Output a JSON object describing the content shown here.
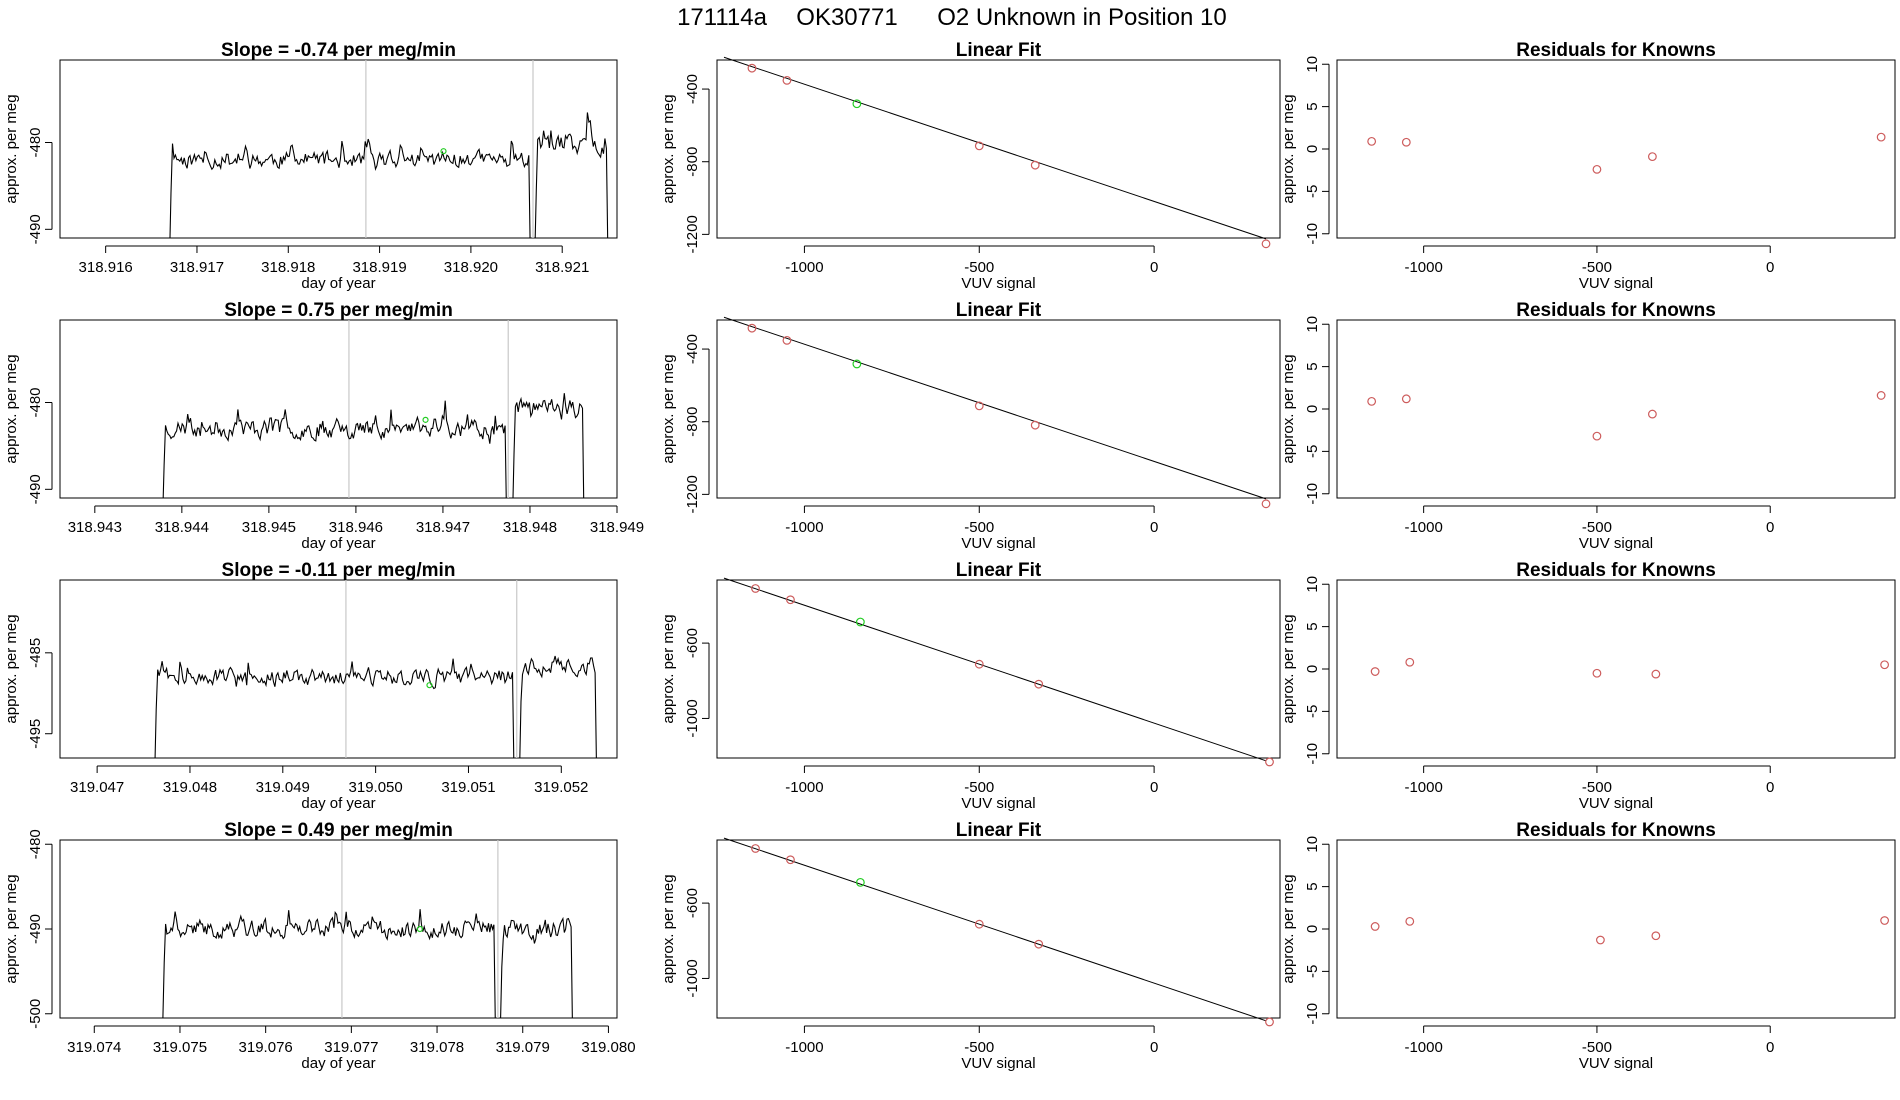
{
  "figure": {
    "title_parts": [
      "171114a",
      "OK30771",
      "O2 Unknown in Position  10"
    ],
    "colors": {
      "known": "#cd5c5c",
      "unknown": "#22cc22",
      "line": "#000000",
      "marker_line": "#c8c8c8"
    }
  },
  "chart_data": [
    {
      "row": 1,
      "timeseries": {
        "type": "line",
        "title": "Slope =  -0.74  per meg/min",
        "xlabel": "day of year",
        "ylabel": "approx. per meg",
        "xlim": [
          318.9155,
          318.9216
        ],
        "ylim": [
          -491,
          -470.5
        ],
        "xticks": [
          318.916,
          318.917,
          318.918,
          318.919,
          318.92,
          318.921
        ],
        "xtick_labels": [
          "318.916",
          "318.917",
          "318.918",
          "318.919",
          "318.920",
          "318.921"
        ],
        "yticks": [
          -480,
          -490
        ],
        "ytick_labels": [
          "-480",
          "-490"
        ],
        "x_start": 318.9167,
        "x_end": 318.9215,
        "vlines": [
          318.91885,
          318.92068
        ],
        "unknown_point": {
          "x": 318.9197,
          "y": -481
        },
        "segments": [
          {
            "x_from": 318.9167,
            "x_to": 318.92065,
            "base": -482,
            "amp": 1.5,
            "seed": 11,
            "edge_low": -493
          },
          {
            "x_from": 318.9207,
            "x_to": 318.9215,
            "base": -480,
            "amp": 2.2,
            "seed": 17,
            "edge_low": -493
          }
        ]
      },
      "fit": {
        "type": "scatter",
        "title": "Linear Fit",
        "xlabel": "VUV signal",
        "ylabel": "approx. per meg",
        "xlim": [
          -1250,
          360
        ],
        "ylim": [
          -1220,
          -240
        ],
        "xticks": [
          -1000,
          -500,
          0
        ],
        "xtick_labels": [
          "-1000",
          "-500",
          "0"
        ],
        "yticks": [
          -400,
          -800,
          -1200
        ],
        "ytick_labels": [
          "-400",
          "-800",
          "-1200"
        ],
        "line": [
          [
            -1230,
            -225
          ],
          [
            320,
            -1225
          ]
        ],
        "known": [
          [
            -1150,
            -285
          ],
          [
            -1050,
            -352
          ],
          [
            -500,
            -713
          ],
          [
            -340,
            -819
          ],
          [
            320,
            -1252
          ]
        ],
        "unknown": [
          [
            -850,
            -481
          ]
        ]
      },
      "residuals": {
        "type": "scatter",
        "title": "Residuals for Knowns",
        "xlabel": "VUV signal",
        "ylabel": "approx. per meg",
        "xlim": [
          -1250,
          360
        ],
        "ylim": [
          -10.5,
          10.5
        ],
        "xticks": [
          -1000,
          -500,
          0
        ],
        "xtick_labels": [
          "-1000",
          "-500",
          "0"
        ],
        "yticks": [
          10,
          5,
          0,
          -5,
          -10
        ],
        "ytick_labels": [
          "10",
          "5",
          "0",
          "-5",
          "-10"
        ],
        "points": [
          [
            -1150,
            0.9
          ],
          [
            -1050,
            0.8
          ],
          [
            -500,
            -2.4
          ],
          [
            -340,
            -0.9
          ],
          [
            320,
            1.4
          ]
        ]
      }
    },
    {
      "row": 2,
      "timeseries": {
        "type": "line",
        "title": "Slope =  0.75  per meg/min",
        "xlabel": "day of year",
        "ylabel": "approx. per meg",
        "xlim": [
          318.9426,
          318.949
        ],
        "ylim": [
          -491,
          -470.5
        ],
        "xticks": [
          318.943,
          318.944,
          318.945,
          318.946,
          318.947,
          318.948,
          318.949
        ],
        "xtick_labels": [
          "318.943",
          "318.944",
          "318.945",
          "318.946",
          "318.947",
          "318.948",
          "318.949"
        ],
        "yticks": [
          -480,
          -490
        ],
        "ytick_labels": [
          "-480",
          "-490"
        ],
        "x_start": 318.94378,
        "x_end": 318.94862,
        "vlines": [
          318.94592,
          318.94775
        ],
        "unknown_point": {
          "x": 318.9468,
          "y": -482
        },
        "segments": [
          {
            "x_from": 318.94378,
            "x_to": 318.94773,
            "base": -483,
            "amp": 1.7,
            "seed": 23,
            "edge_low": -493
          },
          {
            "x_from": 318.9478,
            "x_to": 318.94862,
            "base": -481,
            "amp": 2.0,
            "seed": 29,
            "edge_low": -493
          }
        ]
      },
      "fit": {
        "type": "scatter",
        "title": "Linear Fit",
        "xlabel": "VUV signal",
        "ylabel": "approx. per meg",
        "xlim": [
          -1250,
          360
        ],
        "ylim": [
          -1220,
          -240
        ],
        "xticks": [
          -1000,
          -500,
          0
        ],
        "xtick_labels": [
          "-1000",
          "-500",
          "0"
        ],
        "yticks": [
          -400,
          -800,
          -1200
        ],
        "ytick_labels": [
          "-400",
          "-800",
          "-1200"
        ],
        "line": [
          [
            -1230,
            -225
          ],
          [
            320,
            -1225
          ]
        ],
        "known": [
          [
            -1150,
            -285
          ],
          [
            -1050,
            -352
          ],
          [
            -500,
            -713
          ],
          [
            -340,
            -819
          ],
          [
            320,
            -1252
          ]
        ],
        "unknown": [
          [
            -850,
            -482
          ]
        ]
      },
      "residuals": {
        "type": "scatter",
        "title": "Residuals for Knowns",
        "xlabel": "VUV signal",
        "ylabel": "approx. per meg",
        "xlim": [
          -1250,
          360
        ],
        "ylim": [
          -10.5,
          10.5
        ],
        "xticks": [
          -1000,
          -500,
          0
        ],
        "xtick_labels": [
          "-1000",
          "-500",
          "0"
        ],
        "yticks": [
          10,
          5,
          0,
          -5,
          -10
        ],
        "ytick_labels": [
          "10",
          "5",
          "0",
          "-5",
          "-10"
        ],
        "points": [
          [
            -1150,
            0.9
          ],
          [
            -1050,
            1.2
          ],
          [
            -500,
            -3.2
          ],
          [
            -340,
            -0.6
          ],
          [
            320,
            1.6
          ]
        ]
      }
    },
    {
      "row": 3,
      "timeseries": {
        "type": "line",
        "title": "Slope =  -0.11  per meg/min",
        "xlabel": "day of year",
        "ylabel": "approx. per meg",
        "xlim": [
          319.0466,
          319.0526
        ],
        "ylim": [
          -498,
          -476
        ],
        "xticks": [
          319.047,
          319.048,
          319.049,
          319.05,
          319.051,
          319.052
        ],
        "xtick_labels": [
          "319.047",
          "319.048",
          "319.049",
          "319.050",
          "319.051",
          "319.052"
        ],
        "yticks": [
          -485,
          -495
        ],
        "ytick_labels": [
          "-485",
          "-495"
        ],
        "x_start": 319.04762,
        "x_end": 319.05238,
        "vlines": [
          319.04968,
          319.05152
        ],
        "unknown_point": {
          "x": 319.05058,
          "y": -489
        },
        "segments": [
          {
            "x_from": 319.04762,
            "x_to": 319.05149,
            "base": -488,
            "amp": 1.6,
            "seed": 31,
            "edge_low": -500
          },
          {
            "x_from": 319.05155,
            "x_to": 319.05238,
            "base": -486.5,
            "amp": 1.8,
            "seed": 37,
            "edge_low": -500
          }
        ]
      },
      "fit": {
        "type": "scatter",
        "title": "Linear Fit",
        "xlabel": "VUV signal",
        "ylabel": "approx. per meg",
        "xlim": [
          -1250,
          360
        ],
        "ylim": [
          -1210,
          -265
        ],
        "xticks": [
          -1000,
          -500,
          0
        ],
        "xtick_labels": [
          "-1000",
          "-500",
          "0"
        ],
        "yticks": [
          -600,
          -1000
        ],
        "ytick_labels": [
          "-600",
          "-1000"
        ],
        "line": [
          [
            -1230,
            -255
          ],
          [
            320,
            -1225
          ]
        ],
        "known": [
          [
            -1140,
            -310
          ],
          [
            -1040,
            -370
          ],
          [
            -500,
            -712
          ],
          [
            -330,
            -818
          ],
          [
            330,
            -1231
          ]
        ],
        "unknown": [
          [
            -840,
            -488
          ]
        ]
      },
      "residuals": {
        "type": "scatter",
        "title": "Residuals for Knowns",
        "xlabel": "VUV signal",
        "ylabel": "approx. per meg",
        "xlim": [
          -1250,
          360
        ],
        "ylim": [
          -10.5,
          10.5
        ],
        "xticks": [
          -1000,
          -500,
          0
        ],
        "xtick_labels": [
          "-1000",
          "-500",
          "0"
        ],
        "yticks": [
          10,
          5,
          0,
          -5,
          -10
        ],
        "ytick_labels": [
          "10",
          "5",
          "0",
          "-5",
          "-10"
        ],
        "points": [
          [
            -1140,
            -0.3
          ],
          [
            -1040,
            0.8
          ],
          [
            -500,
            -0.5
          ],
          [
            -330,
            -0.6
          ],
          [
            330,
            0.5
          ]
        ]
      }
    },
    {
      "row": 4,
      "timeseries": {
        "type": "line",
        "title": "Slope =  0.49  per meg/min",
        "xlabel": "day of year",
        "ylabel": "approx. per meg",
        "xlim": [
          319.0736,
          319.0801
        ],
        "ylim": [
          -500.5,
          -479.5
        ],
        "xticks": [
          319.074,
          319.075,
          319.076,
          319.077,
          319.078,
          319.079,
          319.08
        ],
        "xtick_labels": [
          "319.074",
          "319.075",
          "319.076",
          "319.077",
          "319.078",
          "319.079",
          "319.080"
        ],
        "yticks": [
          -480,
          -490,
          -500
        ],
        "ytick_labels": [
          "-480",
          "-490",
          "-500"
        ],
        "x_start": 319.0748,
        "x_end": 319.07958,
        "vlines": [
          319.07689,
          319.07871
        ],
        "unknown_point": {
          "x": 319.0778,
          "y": -490
        },
        "segments": [
          {
            "x_from": 319.0748,
            "x_to": 319.07868,
            "base": -490,
            "amp": 1.6,
            "seed": 41,
            "edge_low": -501
          },
          {
            "x_from": 319.07874,
            "x_to": 319.07958,
            "base": -490,
            "amp": 1.8,
            "seed": 43,
            "edge_low": -501
          }
        ]
      },
      "fit": {
        "type": "scatter",
        "title": "Linear Fit",
        "xlabel": "VUV signal",
        "ylabel": "approx. per meg",
        "xlim": [
          -1250,
          360
        ],
        "ylim": [
          -1210,
          -265
        ],
        "xticks": [
          -1000,
          -500,
          0
        ],
        "xtick_labels": [
          "-1000",
          "-500",
          "0"
        ],
        "yticks": [
          -600,
          -1000
        ],
        "ytick_labels": [
          "-600",
          "-1000"
        ],
        "line": [
          [
            -1230,
            -255
          ],
          [
            320,
            -1225
          ]
        ],
        "known": [
          [
            -1140,
            -310
          ],
          [
            -1040,
            -370
          ],
          [
            -500,
            -712
          ],
          [
            -330,
            -818
          ],
          [
            330,
            -1231
          ]
        ],
        "unknown": [
          [
            -840,
            -490
          ]
        ]
      },
      "residuals": {
        "type": "scatter",
        "title": "Residuals for Knowns",
        "xlabel": "VUV signal",
        "ylabel": "approx. per meg",
        "xlim": [
          -1250,
          360
        ],
        "ylim": [
          -10.5,
          10.5
        ],
        "xticks": [
          -1000,
          -500,
          0
        ],
        "xtick_labels": [
          "-1000",
          "-500",
          "0"
        ],
        "yticks": [
          10,
          5,
          0,
          -5,
          -10
        ],
        "ytick_labels": [
          "10",
          "5",
          "0",
          "-5",
          "-10"
        ],
        "points": [
          [
            -1140,
            0.3
          ],
          [
            -1040,
            0.9
          ],
          [
            -490,
            -1.3
          ],
          [
            -330,
            -0.8
          ],
          [
            330,
            1.0
          ]
        ]
      }
    }
  ]
}
